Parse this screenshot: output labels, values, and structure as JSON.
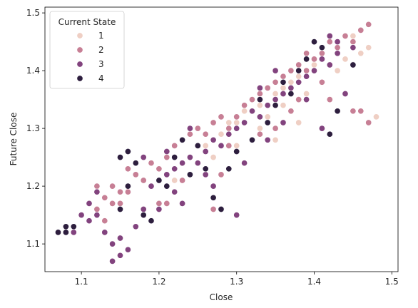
{
  "chart_data": {
    "type": "scatter",
    "title": "",
    "xlabel": "Close",
    "ylabel": "Future Close",
    "xlim": [
      1.053,
      1.508
    ],
    "ylim": [
      1.052,
      1.51
    ],
    "xticks": [
      1.1,
      1.2,
      1.3,
      1.4,
      1.5
    ],
    "yticks": [
      1.1,
      1.2,
      1.3,
      1.4,
      1.5
    ],
    "grid": false,
    "legend": {
      "title": "Current State",
      "placement": "top-left",
      "entries": [
        "1",
        "2",
        "3",
        "4"
      ]
    },
    "series": [
      {
        "name": "1",
        "color": "#efcfc4",
        "points": [
          [
            1.24,
            1.25
          ],
          [
            1.26,
            1.27
          ],
          [
            1.28,
            1.29
          ],
          [
            1.3,
            1.31
          ],
          [
            1.31,
            1.33
          ],
          [
            1.33,
            1.34
          ],
          [
            1.34,
            1.32
          ],
          [
            1.35,
            1.36
          ],
          [
            1.36,
            1.37
          ],
          [
            1.37,
            1.38
          ],
          [
            1.38,
            1.39
          ],
          [
            1.4,
            1.41
          ],
          [
            1.41,
            1.42
          ],
          [
            1.42,
            1.45
          ],
          [
            1.45,
            1.46
          ],
          [
            1.46,
            1.43
          ],
          [
            1.48,
            1.32
          ],
          [
            1.47,
            1.44
          ],
          [
            1.39,
            1.36
          ],
          [
            1.33,
            1.3
          ],
          [
            1.29,
            1.31
          ],
          [
            1.27,
            1.25
          ],
          [
            1.22,
            1.21
          ],
          [
            1.35,
            1.28
          ],
          [
            1.38,
            1.31
          ],
          [
            1.43,
            1.4
          ],
          [
            1.44,
            1.42
          ],
          [
            1.36,
            1.34
          ],
          [
            1.32,
            1.35
          ],
          [
            1.3,
            1.27
          ]
        ]
      },
      {
        "name": "2",
        "color": "#c77f95",
        "points": [
          [
            1.12,
            1.2
          ],
          [
            1.13,
            1.18
          ],
          [
            1.14,
            1.17
          ],
          [
            1.15,
            1.19
          ],
          [
            1.16,
            1.19
          ],
          [
            1.17,
            1.22
          ],
          [
            1.19,
            1.24
          ],
          [
            1.2,
            1.23
          ],
          [
            1.21,
            1.25
          ],
          [
            1.22,
            1.27
          ],
          [
            1.23,
            1.28
          ],
          [
            1.24,
            1.29
          ],
          [
            1.25,
            1.3
          ],
          [
            1.26,
            1.29
          ],
          [
            1.27,
            1.31
          ],
          [
            1.28,
            1.32
          ],
          [
            1.29,
            1.3
          ],
          [
            1.3,
            1.32
          ],
          [
            1.31,
            1.34
          ],
          [
            1.32,
            1.35
          ],
          [
            1.33,
            1.36
          ],
          [
            1.34,
            1.37
          ],
          [
            1.35,
            1.38
          ],
          [
            1.36,
            1.39
          ],
          [
            1.37,
            1.4
          ],
          [
            1.38,
            1.41
          ],
          [
            1.39,
            1.4
          ],
          [
            1.4,
            1.42
          ],
          [
            1.41,
            1.43
          ],
          [
            1.42,
            1.45
          ],
          [
            1.43,
            1.44
          ],
          [
            1.44,
            1.46
          ],
          [
            1.45,
            1.45
          ],
          [
            1.46,
            1.47
          ],
          [
            1.47,
            1.48
          ],
          [
            1.45,
            1.33
          ],
          [
            1.46,
            1.33
          ],
          [
            1.47,
            1.31
          ],
          [
            1.42,
            1.35
          ],
          [
            1.38,
            1.35
          ],
          [
            1.3,
            1.26
          ],
          [
            1.27,
            1.16
          ],
          [
            1.21,
            1.17
          ],
          [
            1.2,
            1.17
          ],
          [
            1.14,
            1.2
          ],
          [
            1.13,
            1.14
          ],
          [
            1.15,
            1.17
          ],
          [
            1.12,
            1.16
          ],
          [
            1.16,
            1.23
          ],
          [
            1.18,
            1.21
          ],
          [
            1.24,
            1.22
          ],
          [
            1.28,
            1.22
          ],
          [
            1.35,
            1.3
          ],
          [
            1.37,
            1.33
          ],
          [
            1.39,
            1.43
          ],
          [
            1.41,
            1.38
          ],
          [
            1.44,
            1.36
          ],
          [
            1.33,
            1.29
          ],
          [
            1.29,
            1.27
          ],
          [
            1.23,
            1.21
          ]
        ]
      },
      {
        "name": "3",
        "color": "#82437e",
        "points": [
          [
            1.1,
            1.15
          ],
          [
            1.11,
            1.14
          ],
          [
            1.12,
            1.15
          ],
          [
            1.13,
            1.12
          ],
          [
            1.14,
            1.1
          ],
          [
            1.15,
            1.11
          ],
          [
            1.16,
            1.09
          ],
          [
            1.17,
            1.13
          ],
          [
            1.18,
            1.16
          ],
          [
            1.19,
            1.2
          ],
          [
            1.2,
            1.21
          ],
          [
            1.21,
            1.22
          ],
          [
            1.22,
            1.23
          ],
          [
            1.23,
            1.24
          ],
          [
            1.24,
            1.25
          ],
          [
            1.25,
            1.24
          ],
          [
            1.26,
            1.26
          ],
          [
            1.27,
            1.28
          ],
          [
            1.28,
            1.27
          ],
          [
            1.29,
            1.29
          ],
          [
            1.3,
            1.3
          ],
          [
            1.31,
            1.31
          ],
          [
            1.32,
            1.33
          ],
          [
            1.33,
            1.32
          ],
          [
            1.34,
            1.34
          ],
          [
            1.35,
            1.35
          ],
          [
            1.36,
            1.36
          ],
          [
            1.37,
            1.37
          ],
          [
            1.38,
            1.38
          ],
          [
            1.39,
            1.39
          ],
          [
            1.4,
            1.4
          ],
          [
            1.41,
            1.42
          ],
          [
            1.42,
            1.41
          ],
          [
            1.43,
            1.43
          ],
          [
            1.44,
            1.36
          ],
          [
            1.41,
            1.3
          ],
          [
            1.3,
            1.15
          ],
          [
            1.28,
            1.16
          ],
          [
            1.26,
            1.22
          ],
          [
            1.22,
            1.19
          ],
          [
            1.2,
            1.16
          ],
          [
            1.15,
            1.08
          ],
          [
            1.14,
            1.07
          ],
          [
            1.09,
            1.12
          ],
          [
            1.11,
            1.17
          ],
          [
            1.12,
            1.19
          ],
          [
            1.18,
            1.25
          ],
          [
            1.24,
            1.3
          ],
          [
            1.31,
            1.24
          ],
          [
            1.34,
            1.28
          ],
          [
            1.36,
            1.31
          ],
          [
            1.39,
            1.35
          ],
          [
            1.43,
            1.45
          ],
          [
            1.42,
            1.46
          ],
          [
            1.45,
            1.44
          ],
          [
            1.27,
            1.2
          ],
          [
            1.23,
            1.17
          ],
          [
            1.21,
            1.26
          ],
          [
            1.33,
            1.37
          ],
          [
            1.35,
            1.4
          ]
        ]
      },
      {
        "name": "4",
        "color": "#2d1e3e",
        "points": [
          [
            1.07,
            1.12
          ],
          [
            1.08,
            1.13
          ],
          [
            1.09,
            1.13
          ],
          [
            1.08,
            1.12
          ],
          [
            1.15,
            1.25
          ],
          [
            1.16,
            1.26
          ],
          [
            1.17,
            1.24
          ],
          [
            1.18,
            1.15
          ],
          [
            1.19,
            1.14
          ],
          [
            1.2,
            1.21
          ],
          [
            1.21,
            1.2
          ],
          [
            1.22,
            1.25
          ],
          [
            1.23,
            1.28
          ],
          [
            1.25,
            1.27
          ],
          [
            1.26,
            1.23
          ],
          [
            1.27,
            1.18
          ],
          [
            1.28,
            1.16
          ],
          [
            1.29,
            1.23
          ],
          [
            1.3,
            1.26
          ],
          [
            1.32,
            1.28
          ],
          [
            1.34,
            1.31
          ],
          [
            1.35,
            1.34
          ],
          [
            1.36,
            1.38
          ],
          [
            1.37,
            1.36
          ],
          [
            1.38,
            1.4
          ],
          [
            1.4,
            1.45
          ],
          [
            1.41,
            1.44
          ],
          [
            1.42,
            1.29
          ],
          [
            1.43,
            1.33
          ],
          [
            1.45,
            1.41
          ],
          [
            1.16,
            1.2
          ],
          [
            1.15,
            1.16
          ],
          [
            1.24,
            1.22
          ],
          [
            1.33,
            1.35
          ],
          [
            1.39,
            1.42
          ]
        ]
      }
    ]
  }
}
